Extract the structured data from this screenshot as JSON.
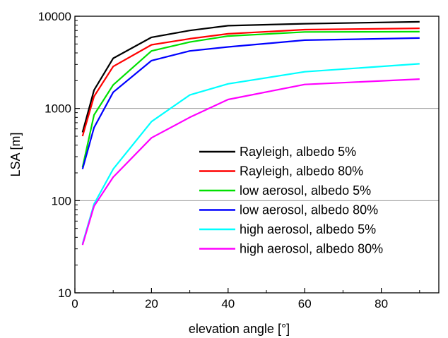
{
  "chart_data": {
    "type": "line",
    "xlabel": "elevation angle [°]",
    "ylabel": "LSA [m]",
    "xlim": [
      0,
      95
    ],
    "ylim": [
      10,
      10000
    ],
    "yscale": "log",
    "x_ticks": [
      0,
      20,
      40,
      60,
      80
    ],
    "y_ticks": [
      10,
      100,
      1000,
      10000
    ],
    "x_tick_labels": [
      "0",
      "20",
      "40",
      "60",
      "80"
    ],
    "y_tick_labels": [
      "10",
      "100",
      "1000",
      "10000"
    ],
    "grid": "horizontal",
    "legend": "right",
    "x": [
      2,
      5,
      10,
      20,
      30,
      40,
      60,
      90
    ],
    "series": [
      {
        "name": "Rayleigh, albedo 5%",
        "color": "#000000",
        "values": [
          550,
          1580,
          3500,
          5900,
          7000,
          7900,
          8300,
          8700
        ]
      },
      {
        "name": "Rayleigh, albedo 80%",
        "color": "#ff0000",
        "values": [
          500,
          1350,
          2850,
          4900,
          5700,
          6450,
          7150,
          7400
        ]
      },
      {
        "name": "low aerosol, albedo 5%",
        "color": "#00e000",
        "values": [
          230,
          850,
          1800,
          4200,
          5250,
          6100,
          6750,
          6800
        ]
      },
      {
        "name": "low aerosol, albedo 80%",
        "color": "#0000ff",
        "values": [
          220,
          620,
          1500,
          3300,
          4200,
          4650,
          5500,
          5800
        ]
      },
      {
        "name": "high aerosol, albedo 5%",
        "color": "#00ffff",
        "values": [
          34,
          92,
          220,
          720,
          1400,
          1850,
          2500,
          3050
        ]
      },
      {
        "name": "high aerosol, albedo 80%",
        "color": "#ff00ff",
        "values": [
          33,
          87,
          180,
          480,
          800,
          1250,
          1820,
          2080
        ]
      }
    ]
  }
}
